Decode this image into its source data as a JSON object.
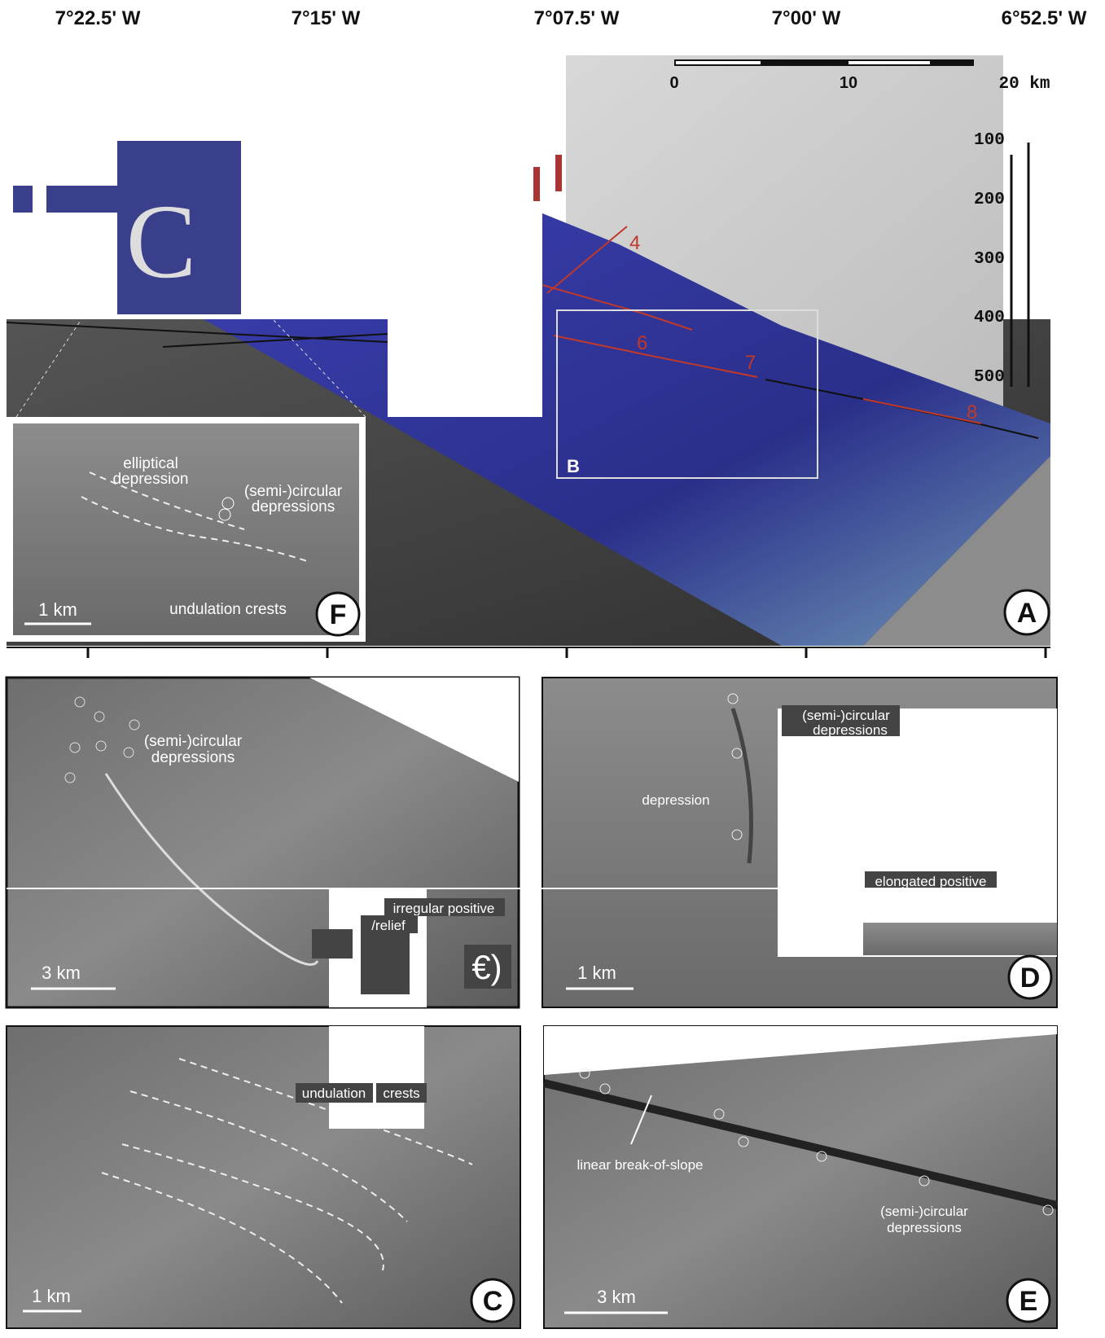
{
  "header": {
    "longitudes": [
      "7°22.5' W",
      "7°15' W",
      "7°07.5' W",
      "7°00' W",
      "6°52.5' W"
    ]
  },
  "panel_a": {
    "letter": "A",
    "overlay_letter": "C",
    "box_label": "B",
    "track_labels": [
      "4",
      "6",
      "7",
      "8"
    ],
    "scale_bar": [
      "0",
      "10",
      "20 km"
    ],
    "depth_labels": [
      "100",
      "200",
      "300",
      "400",
      "500"
    ]
  },
  "panel_f": {
    "letter": "F",
    "annotations": [
      "elliptical",
      "depression",
      "(semi-)circular",
      "depressions",
      "undulation crests"
    ],
    "scale": "1 km"
  },
  "panel_b": {
    "annotations": [
      "(semi-)circular",
      "depressions",
      "irregular positive",
      "/relief"
    ],
    "scale": "3 km",
    "letter": "€)"
  },
  "panel_d": {
    "letter": "D",
    "annotations": [
      "depression",
      "(semi-)circular",
      "depressions",
      "elongated positive"
    ],
    "scale": "1 km"
  },
  "panel_c": {
    "letter": "C",
    "annotations": [
      "undulation",
      "crests"
    ],
    "scale": "1 km"
  },
  "panel_e": {
    "letter": "E",
    "annotations": [
      "linear break-of-slope",
      "(semi-)circular",
      "depressions"
    ],
    "scale": "3 km"
  }
}
